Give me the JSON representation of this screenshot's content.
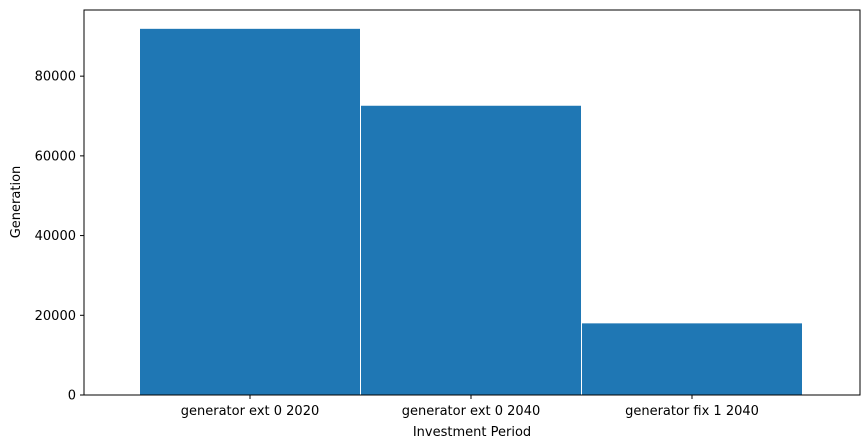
{
  "chart_data": {
    "type": "bar",
    "title": "",
    "xlabel": "Investment Period",
    "ylabel": "Generation",
    "categories": [
      "generator ext 0 2020",
      "generator ext 0 2040",
      "generator fix 1 2040"
    ],
    "values": [
      92000,
      72700,
      18100
    ],
    "ylim": [
      0,
      96600
    ],
    "yticks": [
      0,
      20000,
      40000,
      60000,
      80000
    ],
    "ytick_labels": [
      "0",
      "20000",
      "40000",
      "60000",
      "80000"
    ],
    "grid": false,
    "legend": "none",
    "bar_color": "#1f77b4",
    "bar_edge_color": "#ffffff"
  }
}
